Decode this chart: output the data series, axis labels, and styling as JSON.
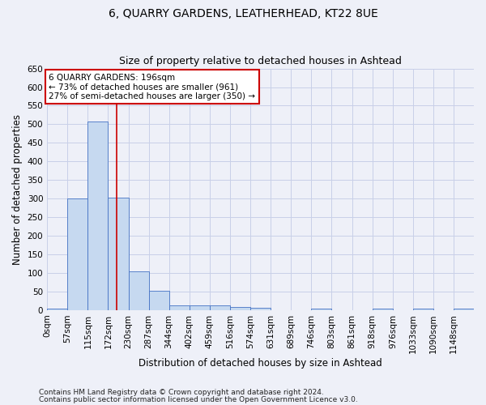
{
  "title": "6, QUARRY GARDENS, LEATHERHEAD, KT22 8UE",
  "subtitle": "Size of property relative to detached houses in Ashtead",
  "xlabel": "Distribution of detached houses by size in Ashtead",
  "ylabel": "Number of detached properties",
  "footnote1": "Contains HM Land Registry data © Crown copyright and database right 2024.",
  "footnote2": "Contains public sector information licensed under the Open Government Licence v3.0.",
  "bin_edges": [
    0,
    57,
    115,
    172,
    230,
    287,
    344,
    402,
    459,
    516,
    574,
    631,
    689,
    746,
    803,
    861,
    918,
    976,
    1033,
    1090,
    1148,
    1205
  ],
  "bar_heights": [
    3,
    300,
    508,
    302,
    105,
    53,
    13,
    13,
    13,
    9,
    6,
    0,
    0,
    5,
    0,
    0,
    3,
    0,
    3,
    0,
    3
  ],
  "bar_color": "#c6d9f0",
  "bar_edge_color": "#4472c4",
  "property_size": 196,
  "red_line_color": "#cc0000",
  "annotation_line1": "6 QUARRY GARDENS: 196sqm",
  "annotation_line2": "← 73% of detached houses are smaller (961)",
  "annotation_line3": "27% of semi-detached houses are larger (350) →",
  "annotation_box_color": "#ffffff",
  "annotation_box_edge_color": "#cc0000",
  "ylim": [
    0,
    650
  ],
  "yticks": [
    0,
    50,
    100,
    150,
    200,
    250,
    300,
    350,
    400,
    450,
    500,
    550,
    600,
    650
  ],
  "grid_color": "#c8d0e8",
  "bg_color": "#eef0f8",
  "title_fontsize": 10,
  "subtitle_fontsize": 9,
  "axis_label_fontsize": 8.5,
  "tick_fontsize": 7.5,
  "annotation_fontsize": 7.5,
  "footnote_fontsize": 6.5
}
